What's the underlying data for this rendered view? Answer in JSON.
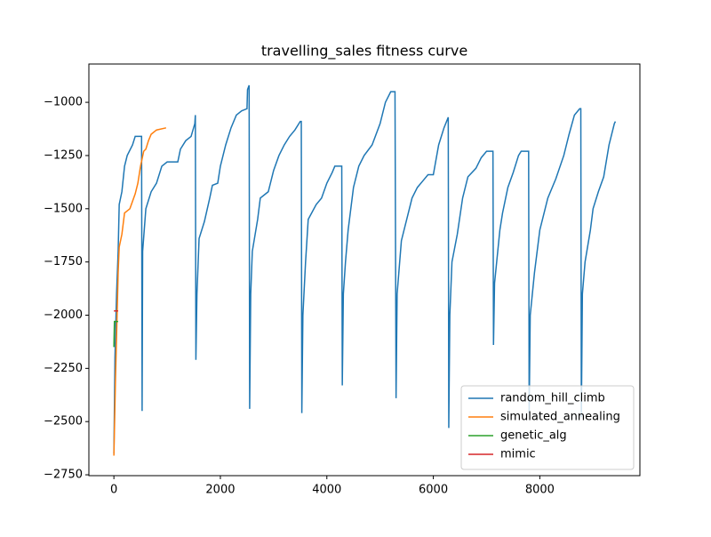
{
  "chart_data": {
    "type": "line",
    "title": "travelling_sales fitness curve",
    "xlim": [
      -470,
      9880
    ],
    "ylim": [
      -2754,
      -820
    ],
    "xticks": [
      0,
      2000,
      4000,
      6000,
      8000
    ],
    "yticks": [
      {
        "value": -1000,
        "label": "−1000"
      },
      {
        "value": -1250,
        "label": "−1250"
      },
      {
        "value": -1500,
        "label": "−1500"
      },
      {
        "value": -1750,
        "label": "−1750"
      },
      {
        "value": -2000,
        "label": "−2000"
      },
      {
        "value": -2250,
        "label": "−2250"
      },
      {
        "value": -2500,
        "label": "−2500"
      },
      {
        "value": -2750,
        "label": "−2750"
      }
    ],
    "grid": false,
    "legend": "lower right",
    "series": [
      {
        "name": "random_hill_climb",
        "color": "#1f77b4",
        "x": [
          0,
          20,
          50,
          80,
          100,
          150,
          200,
          250,
          350,
          400,
          520,
          530,
          540,
          570,
          600,
          700,
          800,
          900,
          1000,
          1200,
          1250,
          1350,
          1450,
          1520,
          1530,
          1540,
          1560,
          1600,
          1700,
          1800,
          1850,
          1950,
          2000,
          2100,
          2200,
          2300,
          2400,
          2500,
          2510,
          2540,
          2550,
          2570,
          2600,
          2700,
          2750,
          2900,
          3000,
          3100,
          3200,
          3300,
          3400,
          3500,
          3520,
          3530,
          3550,
          3600,
          3650,
          3800,
          3900,
          4000,
          4100,
          4150,
          4280,
          4290,
          4310,
          4350,
          4400,
          4500,
          4600,
          4700,
          4850,
          5000,
          5100,
          5200,
          5280,
          5300,
          5320,
          5400,
          5500,
          5600,
          5700,
          5800,
          5900,
          6000,
          6100,
          6200,
          6280,
          6290,
          6310,
          6350,
          6450,
          6550,
          6650,
          6800,
          6900,
          7000,
          7120,
          7130,
          7150,
          7250,
          7300,
          7400,
          7500,
          7600,
          7650,
          7790,
          7800,
          7820,
          7900,
          8000,
          8050,
          8150,
          8300,
          8450,
          8550,
          8650,
          8750,
          8770,
          8780,
          8800,
          8850,
          8950,
          9000,
          9100,
          9200,
          9300,
          9400,
          9420
        ],
        "values": [
          -2650,
          -2200,
          -1900,
          -1700,
          -1480,
          -1420,
          -1300,
          -1250,
          -1200,
          -1160,
          -1160,
          -2450,
          -1700,
          -1600,
          -1500,
          -1420,
          -1380,
          -1300,
          -1280,
          -1280,
          -1220,
          -1180,
          -1160,
          -1100,
          -1060,
          -2210,
          -1900,
          -1640,
          -1560,
          -1450,
          -1390,
          -1380,
          -1300,
          -1200,
          -1120,
          -1060,
          -1040,
          -1030,
          -940,
          -920,
          -2440,
          -1900,
          -1700,
          -1550,
          -1450,
          -1420,
          -1320,
          -1250,
          -1200,
          -1160,
          -1130,
          -1090,
          -1090,
          -2460,
          -2000,
          -1750,
          -1550,
          -1480,
          -1450,
          -1380,
          -1330,
          -1300,
          -1300,
          -2330,
          -1900,
          -1750,
          -1600,
          -1400,
          -1300,
          -1250,
          -1200,
          -1100,
          -1000,
          -950,
          -950,
          -2390,
          -1900,
          -1650,
          -1550,
          -1450,
          -1400,
          -1370,
          -1340,
          -1340,
          -1200,
          -1120,
          -1070,
          -2530,
          -2000,
          -1750,
          -1620,
          -1450,
          -1350,
          -1310,
          -1260,
          -1230,
          -1230,
          -2140,
          -1850,
          -1600,
          -1520,
          -1400,
          -1330,
          -1250,
          -1230,
          -1230,
          -2460,
          -2000,
          -1800,
          -1600,
          -1550,
          -1450,
          -1360,
          -1250,
          -1150,
          -1060,
          -1030,
          -1030,
          -2480,
          -1900,
          -1750,
          -1600,
          -1500,
          -1420,
          -1350,
          -1200,
          -1100,
          -1090
        ]
      },
      {
        "name": "simulated_annealing",
        "color": "#ff7f0e",
        "x": [
          0,
          30,
          60,
          80,
          100,
          150,
          200,
          300,
          400,
          450,
          500,
          560,
          600,
          650,
          700,
          800,
          980
        ],
        "values": [
          -2660,
          -2300,
          -2000,
          -1800,
          -1680,
          -1620,
          -1520,
          -1500,
          -1430,
          -1380,
          -1300,
          -1230,
          -1220,
          -1180,
          -1150,
          -1130,
          -1120
        ]
      },
      {
        "name": "genetic_alg",
        "color": "#2ca02c",
        "x": [
          0,
          10,
          80
        ],
        "values": [
          -2150,
          -2030,
          -2030
        ]
      },
      {
        "name": "mimic",
        "color": "#d62728",
        "x": [
          0,
          80
        ],
        "values": [
          -1980,
          -1980
        ]
      }
    ]
  }
}
